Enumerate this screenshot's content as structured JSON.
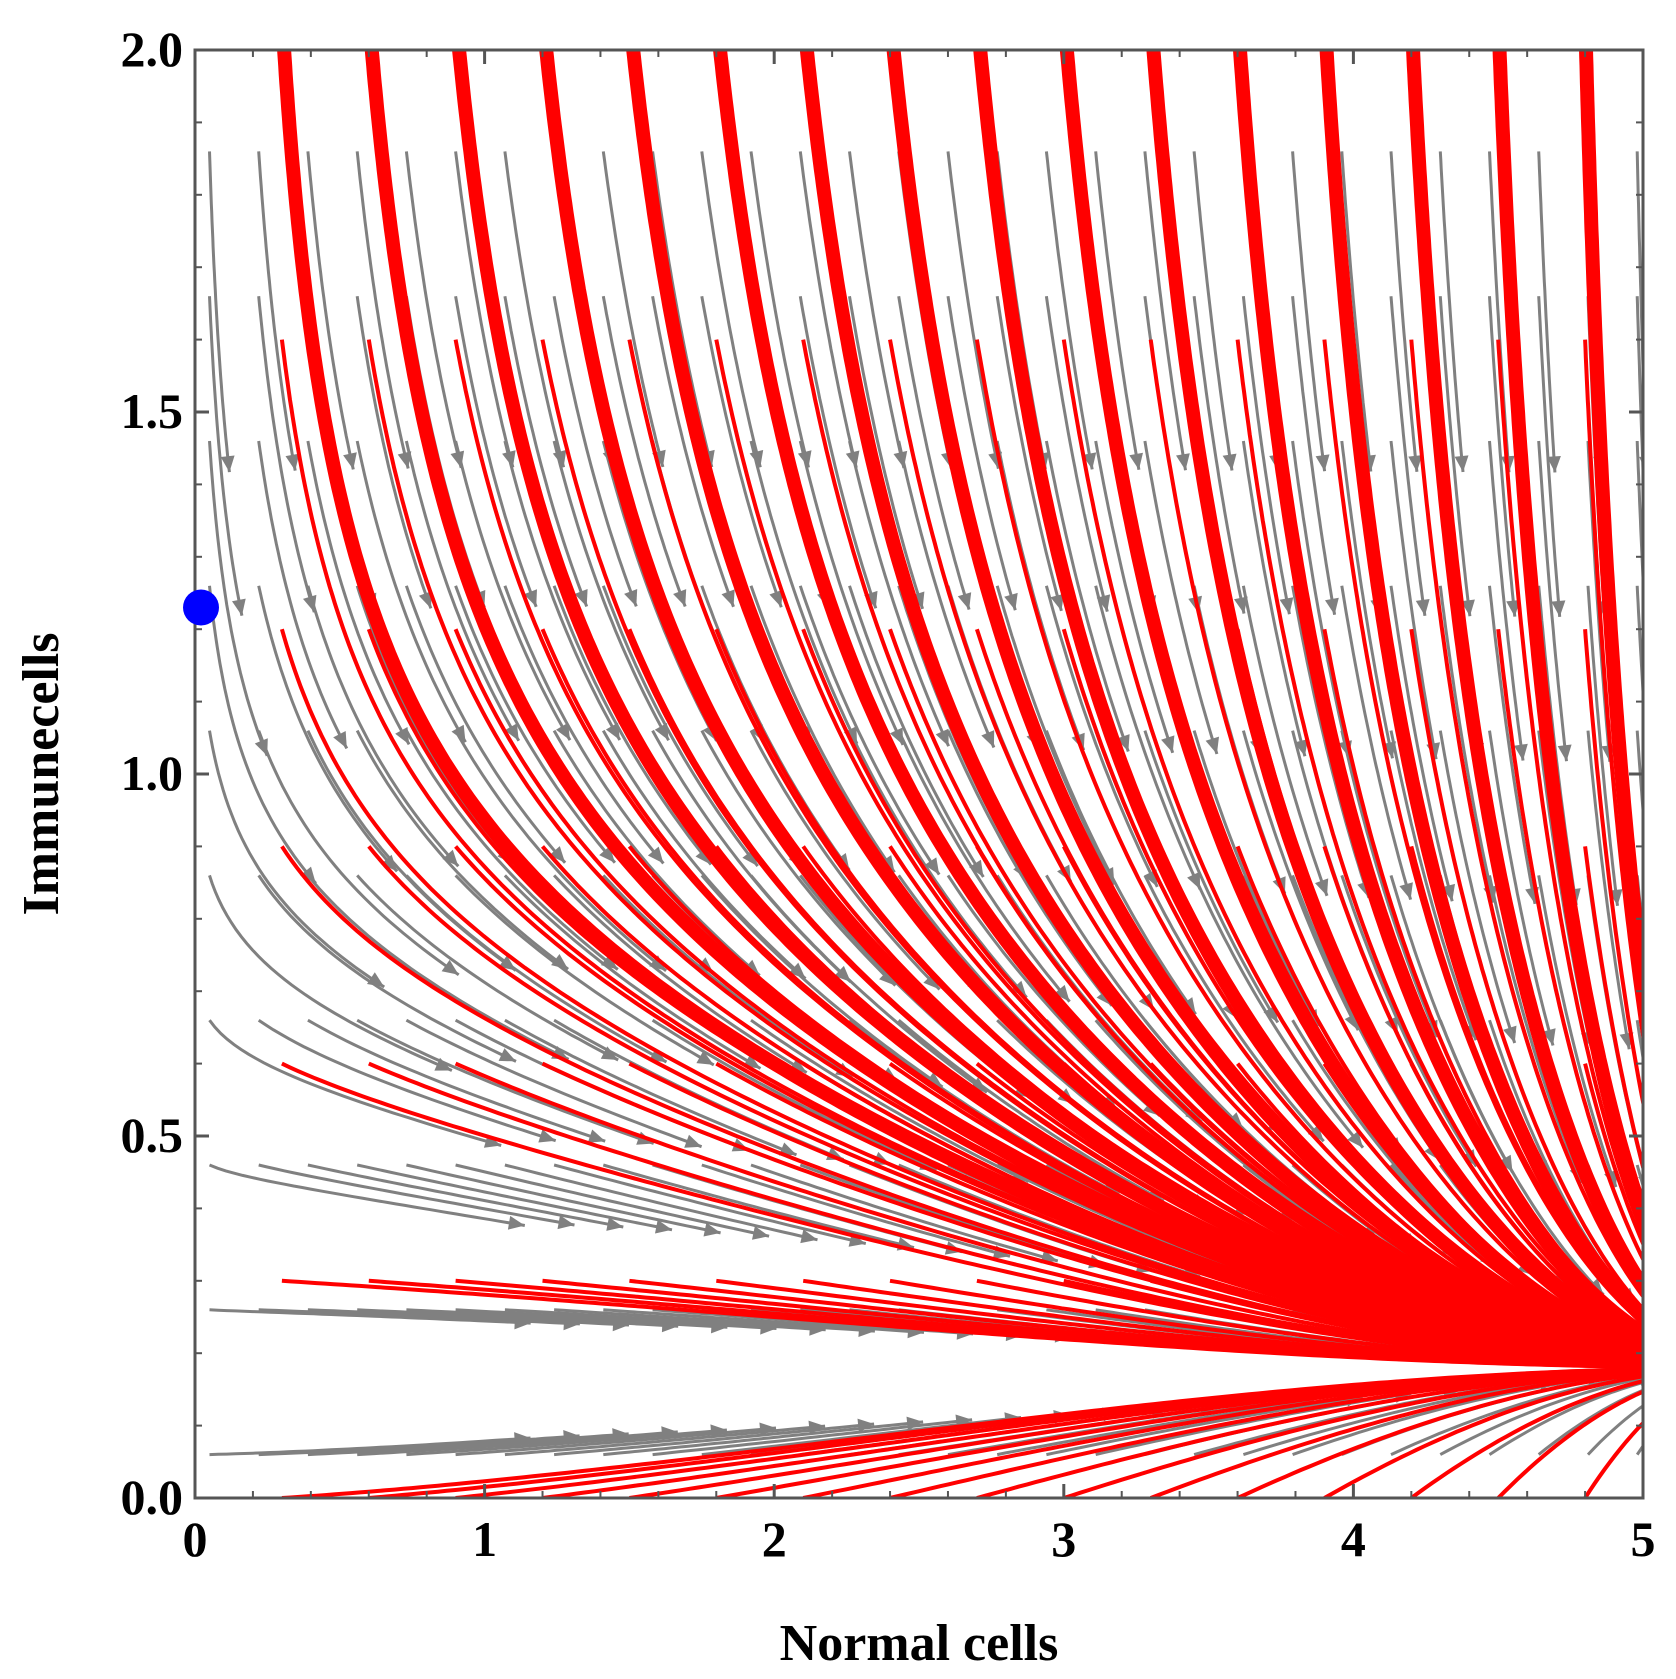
{
  "chart_data": {
    "type": "streamplot",
    "title": "",
    "xlabel": "Normal cells",
    "ylabel": "Immunecells",
    "xlim": [
      0,
      5
    ],
    "ylim": [
      0,
      2
    ],
    "x_ticks": [
      "0",
      "1",
      "2",
      "3",
      "4",
      "5"
    ],
    "y_ticks": [
      "0.0",
      "0.5",
      "1.0",
      "1.5",
      "2.0"
    ],
    "x_tick_values": [
      0,
      1,
      2,
      3,
      4,
      5
    ],
    "y_tick_values": [
      0,
      0.5,
      1.0,
      1.5,
      2.0
    ],
    "equilibrium_point": {
      "x": 0,
      "y": 1.23,
      "color": "#0000ff"
    },
    "stable_attractor": {
      "x": 5,
      "y": 0.18
    },
    "series": [
      {
        "name": "vector field streamlines",
        "color": "#808080",
        "style": "arrows"
      },
      {
        "name": "trajectories",
        "color": "#ff0000",
        "style": "thick lines"
      }
    ],
    "colors": {
      "field": "#808080",
      "trajectory": "#ff0000",
      "equilibrium": "#0000ff",
      "frame": "#555555"
    }
  }
}
